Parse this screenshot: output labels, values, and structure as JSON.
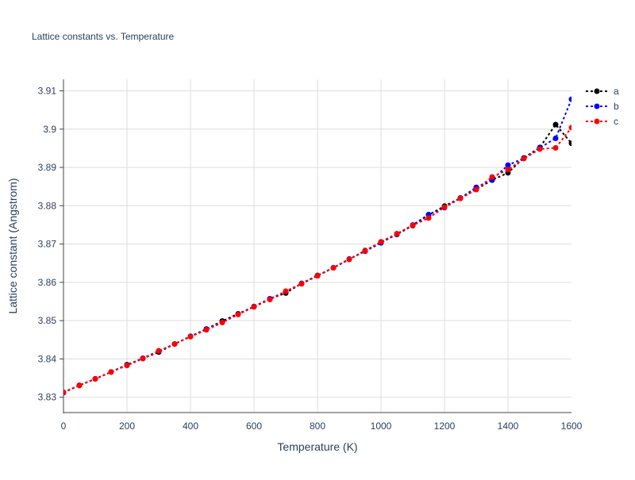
{
  "chart_data": {
    "type": "line",
    "title": "Lattice constants vs. Temperature",
    "xlabel": "Temperature (K)",
    "ylabel": "Lattice constant (Angstrom)",
    "xlim": [
      0,
      1600
    ],
    "ylim": [
      3.826,
      3.913
    ],
    "xticks": [
      0,
      200,
      400,
      600,
      800,
      1000,
      1200,
      1400,
      1600
    ],
    "xtick_labels": [
      "0",
      "200",
      "400",
      "600",
      "800",
      "1000",
      "1200",
      "1400",
      "1600"
    ],
    "yticks": [
      3.83,
      3.84,
      3.85,
      3.86,
      3.87,
      3.88,
      3.89,
      3.9,
      3.91
    ],
    "ytick_labels": [
      "3.83",
      "3.84",
      "3.85",
      "3.86",
      "3.87",
      "3.88",
      "3.89",
      "3.9",
      "3.91"
    ],
    "grid": true,
    "legend_position": "top-right",
    "x": [
      0,
      50,
      100,
      150,
      200,
      250,
      300,
      350,
      400,
      450,
      500,
      550,
      600,
      650,
      700,
      750,
      800,
      850,
      900,
      950,
      1000,
      1050,
      1100,
      1150,
      1200,
      1250,
      1300,
      1350,
      1400,
      1450,
      1500,
      1550,
      1600
    ],
    "series": [
      {
        "name": "a",
        "color": "#000000",
        "values": [
          3.8312,
          3.8331,
          3.8348,
          3.8366,
          3.8385,
          3.8401,
          3.8418,
          3.8439,
          3.8459,
          3.8478,
          3.8499,
          3.8518,
          3.8536,
          3.8557,
          3.8572,
          3.8597,
          3.8618,
          3.8638,
          3.866,
          3.8683,
          3.8705,
          3.8725,
          3.8748,
          3.8776,
          3.8799,
          3.882,
          3.8843,
          3.8867,
          3.8886,
          3.8925,
          3.8952,
          3.9012,
          3.8963
        ]
      },
      {
        "name": "b",
        "color": "#0000ff",
        "values": [
          3.8312,
          3.8331,
          3.8348,
          3.8366,
          3.8384,
          3.8402,
          3.8421,
          3.8439,
          3.8459,
          3.8478,
          3.8496,
          3.8517,
          3.8537,
          3.8557,
          3.8576,
          3.8597,
          3.8617,
          3.8638,
          3.8661,
          3.8681,
          3.8703,
          3.8726,
          3.875,
          3.8777,
          3.8795,
          3.882,
          3.8848,
          3.8868,
          3.8906,
          3.8924,
          3.8951,
          3.8976,
          3.9078
        ]
      },
      {
        "name": "c",
        "color": "#ff0000",
        "values": [
          3.8313,
          3.8331,
          3.8348,
          3.8366,
          3.8383,
          3.8401,
          3.8421,
          3.8439,
          3.8458,
          3.8476,
          3.8495,
          3.8516,
          3.8536,
          3.8555,
          3.8577,
          3.8596,
          3.8617,
          3.8638,
          3.866,
          3.8682,
          3.8706,
          3.8727,
          3.8749,
          3.8768,
          3.8796,
          3.8819,
          3.8842,
          3.8875,
          3.8894,
          3.8923,
          3.8948,
          3.8951,
          3.9004
        ]
      }
    ]
  }
}
